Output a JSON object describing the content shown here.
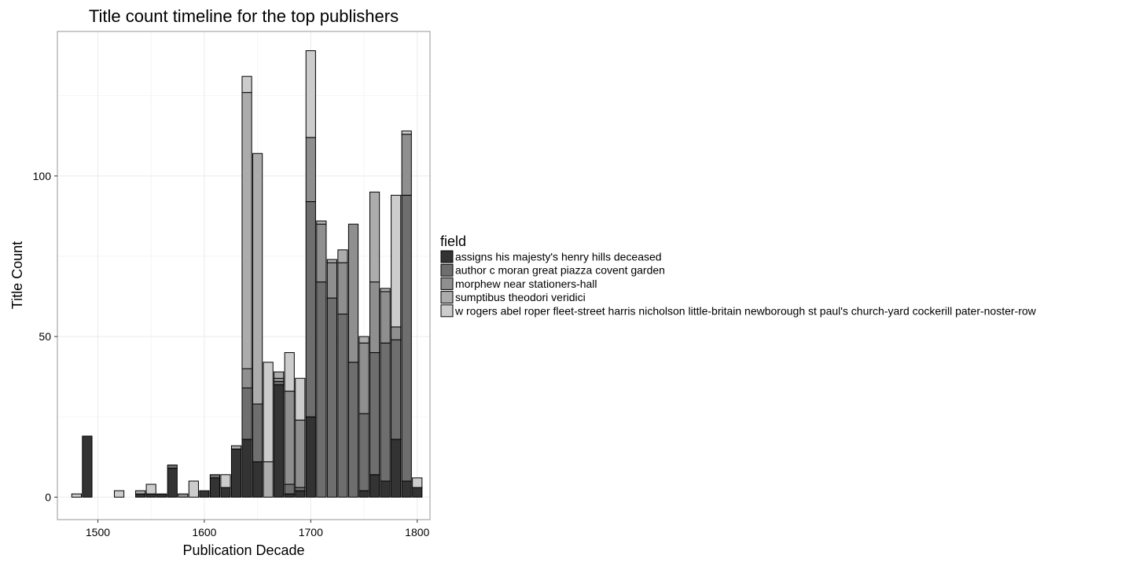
{
  "chart_data": {
    "type": "bar",
    "stacked": true,
    "title": "Title count timeline for the top publishers",
    "xlabel": "Publication Decade",
    "ylabel": "Title Count",
    "xlim": [
      1462,
      1812
    ],
    "ylim": [
      -7,
      145
    ],
    "bar_width_years": 9,
    "xticks": [
      1500,
      1600,
      1700,
      1800
    ],
    "yticks": [
      0,
      50,
      100
    ],
    "grid": true,
    "legend": {
      "title": "field",
      "position": "right"
    },
    "series": [
      {
        "name": "assigns his majesty's henry hills deceased",
        "color": "#333333",
        "x": [
          1490,
          1540,
          1550,
          1560,
          1570,
          1600,
          1610,
          1620,
          1630,
          1640,
          1650,
          1670,
          1680,
          1690,
          1700,
          1710,
          1750,
          1760,
          1770,
          1780,
          1790,
          1800
        ],
        "values": [
          19,
          1,
          1,
          1,
          9,
          2,
          6,
          3,
          15,
          18,
          11,
          35,
          1,
          2,
          25,
          0,
          2,
          7,
          5,
          18,
          5,
          3
        ]
      },
      {
        "name": "author c moran great piazza covent garden",
        "color": "#6e6e6e",
        "x": [
          1570,
          1610,
          1640,
          1650,
          1670,
          1680,
          1690,
          1700,
          1710,
          1720,
          1730,
          1740,
          1750,
          1760,
          1770,
          1780,
          1790
        ],
        "values": [
          1,
          1,
          16,
          18,
          1,
          3,
          1,
          67,
          67,
          62,
          57,
          42,
          24,
          38,
          43,
          31,
          89
        ]
      },
      {
        "name": "morphew near stationers-hall",
        "color": "#8f8f8f",
        "x": [
          1580,
          1640,
          1670,
          1680,
          1690,
          1700,
          1710,
          1720,
          1730,
          1740,
          1750,
          1760,
          1770,
          1780,
          1790
        ],
        "values": [
          1,
          6,
          1,
          29,
          21,
          20,
          18,
          11,
          16,
          43,
          22,
          22,
          16,
          4,
          19
        ]
      },
      {
        "name": "sumptibus theodori veridici",
        "color": "#acacac",
        "x": [
          1540,
          1630,
          1640,
          1650,
          1660,
          1670,
          1710,
          1720,
          1730,
          1750,
          1760,
          1770
        ],
        "values": [
          1,
          1,
          86,
          78,
          11,
          2,
          1,
          1,
          4,
          2,
          28,
          1
        ]
      },
      {
        "name": "w rogers abel roper fleet-street harris nicholson little-britain newborough st paul's church-yard cockerill pater-noster-row",
        "color": "#cccccc",
        "x": [
          1480,
          1520,
          1550,
          1590,
          1620,
          1640,
          1660,
          1680,
          1690,
          1700,
          1780,
          1790,
          1800
        ],
        "values": [
          1,
          2,
          3,
          5,
          4,
          5,
          31,
          12,
          13,
          27,
          41,
          1,
          3
        ]
      }
    ]
  }
}
